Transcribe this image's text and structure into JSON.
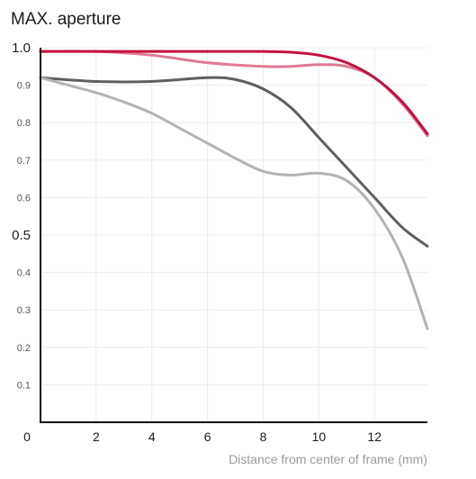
{
  "chart_data": {
    "type": "line",
    "title": "MAX. aperture",
    "xlabel": "Distance from center of frame (mm)",
    "ylabel": "",
    "xlim": [
      0,
      13.9
    ],
    "ylim": [
      0,
      1.0
    ],
    "x_ticks": [
      0,
      2,
      4,
      6,
      8,
      10,
      12
    ],
    "y_ticks": [
      {
        "value": 1.0,
        "label": "1.0",
        "major": true
      },
      {
        "value": 0.9,
        "label": "0.9",
        "major": false
      },
      {
        "value": 0.8,
        "label": "0.8",
        "major": false
      },
      {
        "value": 0.7,
        "label": "0.7",
        "major": false
      },
      {
        "value": 0.6,
        "label": "0.6",
        "major": false
      },
      {
        "value": 0.5,
        "label": "0.5",
        "major": true
      },
      {
        "value": 0.4,
        "label": "0.4",
        "major": false
      },
      {
        "value": 0.3,
        "label": "0.3",
        "major": false
      },
      {
        "value": 0.2,
        "label": "0.2",
        "major": false
      },
      {
        "value": 0.1,
        "label": "0.1",
        "major": false
      }
    ],
    "grid": true,
    "series": [
      {
        "color": "#e07a95",
        "x": [
          0,
          2,
          4,
          6,
          8,
          9,
          10,
          11,
          12,
          13,
          13.9
        ],
        "y": [
          0.99,
          0.99,
          0.98,
          0.96,
          0.95,
          0.95,
          0.955,
          0.95,
          0.92,
          0.85,
          0.765
        ]
      },
      {
        "color": "#c2123f",
        "x": [
          0,
          2,
          4,
          6,
          8,
          9,
          10,
          11,
          12,
          13,
          13.9
        ],
        "y": [
          0.99,
          0.99,
          0.99,
          0.99,
          0.99,
          0.988,
          0.98,
          0.96,
          0.92,
          0.855,
          0.77
        ]
      },
      {
        "color": "#5f5f5f",
        "x": [
          0,
          2,
          4,
          6,
          7,
          8,
          9,
          10,
          11,
          12,
          13,
          13.9
        ],
        "y": [
          0.92,
          0.91,
          0.91,
          0.92,
          0.915,
          0.89,
          0.84,
          0.76,
          0.68,
          0.6,
          0.52,
          0.47
        ]
      },
      {
        "color": "#b3b3b3",
        "x": [
          0,
          1,
          2,
          3,
          4,
          5,
          6,
          7,
          8,
          9,
          10,
          11,
          12,
          13,
          13.9
        ],
        "y": [
          0.92,
          0.9,
          0.88,
          0.855,
          0.825,
          0.785,
          0.745,
          0.705,
          0.67,
          0.66,
          0.665,
          0.645,
          0.57,
          0.44,
          0.25
        ]
      }
    ]
  }
}
